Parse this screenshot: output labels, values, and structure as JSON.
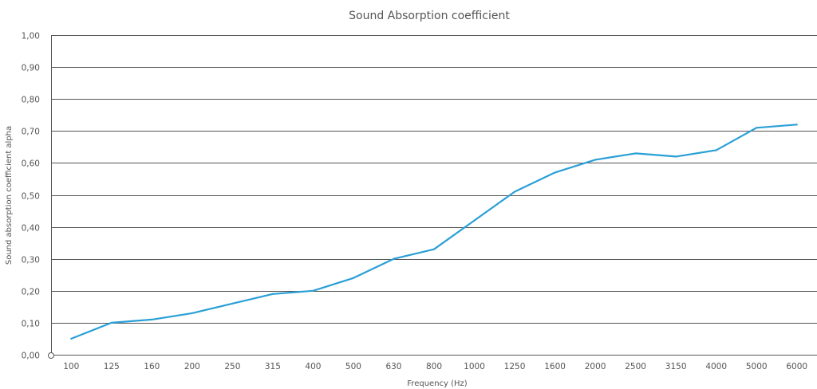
{
  "chart_data": {
    "type": "line",
    "title": "Sound Absorption coefficient",
    "xlabel": "Frequency (Hz)",
    "ylabel": "Sound absorption coefficient alpha",
    "categories": [
      "100",
      "125",
      "160",
      "200",
      "250",
      "315",
      "400",
      "500",
      "630",
      "800",
      "1000",
      "1250",
      "1600",
      "2000",
      "2500",
      "3150",
      "4000",
      "5000",
      "6000"
    ],
    "y_ticks": [
      "0,00",
      "0,10",
      "0,20",
      "0,30",
      "0,40",
      "0,50",
      "0,60",
      "0,70",
      "0,80",
      "0,90",
      "1,00"
    ],
    "ylim": [
      0,
      1
    ],
    "grid": true,
    "series": [
      {
        "values": [
          0.05,
          0.1,
          0.11,
          0.13,
          0.16,
          0.19,
          0.2,
          0.24,
          0.3,
          0.33,
          0.42,
          0.51,
          0.57,
          0.61,
          0.63,
          0.62,
          0.64,
          0.71,
          0.72
        ]
      }
    ],
    "line_color": "#2a9fd6",
    "grid_color": "#555555"
  }
}
